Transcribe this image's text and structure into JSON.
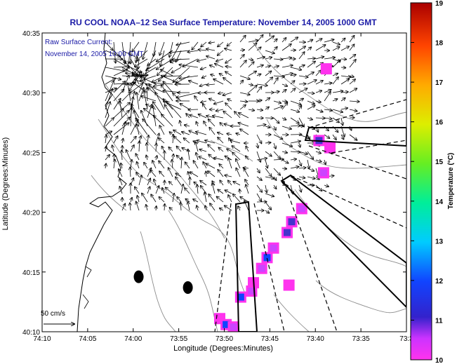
{
  "chart_data": {
    "type": "heatmap",
    "title": "RU COOL  NOAA–12  Sea Surface Temperature:  November 14, 2005 1000 GMT",
    "subtitle_lines": [
      "Raw Surface Current:",
      "November 14, 2005 10:00 GMT"
    ],
    "xlabel": "Longitude (Degrees:Minutes)",
    "ylabel": "Latitude (Degrees:Minutes)",
    "x_range_minutes": [
      -250,
      -210
    ],
    "y_range_minutes": [
      2410,
      2435
    ],
    "x_ticks": [
      {
        "value": -250,
        "label": "74:10"
      },
      {
        "value": -245,
        "label": "74:05"
      },
      {
        "value": -240,
        "label": "74:00"
      },
      {
        "value": -235,
        "label": "73:55"
      },
      {
        "value": -230,
        "label": "73:50"
      },
      {
        "value": -225,
        "label": "73:45"
      },
      {
        "value": -220,
        "label": "73:40"
      },
      {
        "value": -215,
        "label": "73:35"
      },
      {
        "value": -210,
        "label": "73:3"
      }
    ],
    "y_ticks": [
      {
        "value": 2410,
        "label": "40:10"
      },
      {
        "value": 2415,
        "label": "40:15"
      },
      {
        "value": 2420,
        "label": "40:20"
      },
      {
        "value": 2425,
        "label": "40:25"
      },
      {
        "value": 2430,
        "label": "40:30"
      },
      {
        "value": 2435,
        "label": "40:35"
      }
    ],
    "colorbar": {
      "label": "Temperature (°C)",
      "min": 10,
      "max": 19,
      "ticks": [
        "10",
        "11",
        "12",
        "13",
        "14",
        "15",
        "16",
        "17",
        "18",
        "19"
      ]
    },
    "scale_label": "50 cm/s",
    "sst_patches": [
      {
        "lon": -218.8,
        "lat": 2432.0,
        "temp": 10.4
      },
      {
        "lon": -219.6,
        "lat": 2426.0,
        "temp": 11.2
      },
      {
        "lon": -218.4,
        "lat": 2425.4,
        "temp": 10.5
      },
      {
        "lon": -219.1,
        "lat": 2423.3,
        "temp": 10.6
      },
      {
        "lon": -221.5,
        "lat": 2420.3,
        "temp": 10.7
      },
      {
        "lon": -222.6,
        "lat": 2419.2,
        "temp": 10.9
      },
      {
        "lon": -223.1,
        "lat": 2418.3,
        "temp": 11.2
      },
      {
        "lon": -224.6,
        "lat": 2417.0,
        "temp": 10.6
      },
      {
        "lon": -225.3,
        "lat": 2416.2,
        "temp": 11.4
      },
      {
        "lon": -225.9,
        "lat": 2415.3,
        "temp": 10.6
      },
      {
        "lon": -226.8,
        "lat": 2414.1,
        "temp": 10.5
      },
      {
        "lon": -227.0,
        "lat": 2413.4,
        "temp": 10.8
      },
      {
        "lon": -228.2,
        "lat": 2412.9,
        "temp": 11.3
      },
      {
        "lon": -222.9,
        "lat": 2413.9,
        "temp": 10.4
      },
      {
        "lon": -230.5,
        "lat": 2411.1,
        "temp": 10.4
      },
      {
        "lon": -229.8,
        "lat": 2410.6,
        "temp": 11.3
      },
      {
        "lon": -229.0,
        "lat": 2410.4,
        "temp": 10.7
      }
    ],
    "markers": [
      {
        "lon": -239.4,
        "lat": 2414.6
      },
      {
        "lon": -234.0,
        "lat": 2413.7
      }
    ],
    "current_origin": {
      "lon": -239.5,
      "lat": 2431.3
    },
    "legend_placement": "colorbar-right"
  }
}
